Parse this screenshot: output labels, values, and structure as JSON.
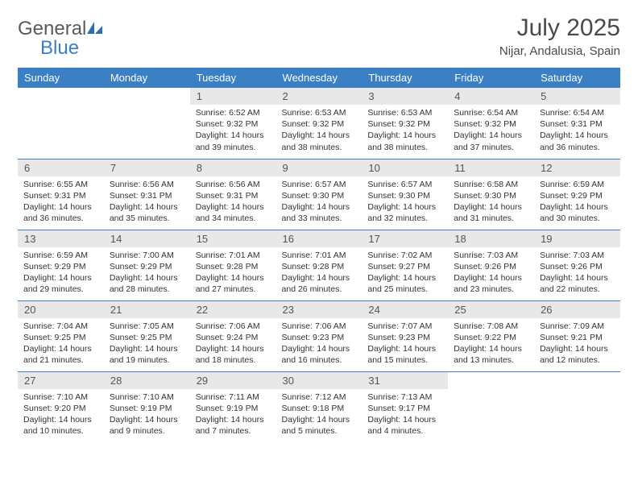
{
  "brand": {
    "name_a": "General",
    "name_b": "Blue"
  },
  "title": "July 2025",
  "location": "Nijar, Andalusia, Spain",
  "colors": {
    "header_bg": "#3b7fc4",
    "header_text": "#ffffff",
    "daynum_bg": "#e8e8e8",
    "row_border": "#3b7fc4",
    "body_text": "#333333",
    "title_text": "#4a4a4a",
    "background": "#ffffff"
  },
  "weekdays": [
    "Sunday",
    "Monday",
    "Tuesday",
    "Wednesday",
    "Thursday",
    "Friday",
    "Saturday"
  ],
  "weeks": [
    [
      null,
      null,
      {
        "n": "1",
        "sunrise": "Sunrise: 6:52 AM",
        "sunset": "Sunset: 9:32 PM",
        "daylight": "Daylight: 14 hours and 39 minutes."
      },
      {
        "n": "2",
        "sunrise": "Sunrise: 6:53 AM",
        "sunset": "Sunset: 9:32 PM",
        "daylight": "Daylight: 14 hours and 38 minutes."
      },
      {
        "n": "3",
        "sunrise": "Sunrise: 6:53 AM",
        "sunset": "Sunset: 9:32 PM",
        "daylight": "Daylight: 14 hours and 38 minutes."
      },
      {
        "n": "4",
        "sunrise": "Sunrise: 6:54 AM",
        "sunset": "Sunset: 9:32 PM",
        "daylight": "Daylight: 14 hours and 37 minutes."
      },
      {
        "n": "5",
        "sunrise": "Sunrise: 6:54 AM",
        "sunset": "Sunset: 9:31 PM",
        "daylight": "Daylight: 14 hours and 36 minutes."
      }
    ],
    [
      {
        "n": "6",
        "sunrise": "Sunrise: 6:55 AM",
        "sunset": "Sunset: 9:31 PM",
        "daylight": "Daylight: 14 hours and 36 minutes."
      },
      {
        "n": "7",
        "sunrise": "Sunrise: 6:56 AM",
        "sunset": "Sunset: 9:31 PM",
        "daylight": "Daylight: 14 hours and 35 minutes."
      },
      {
        "n": "8",
        "sunrise": "Sunrise: 6:56 AM",
        "sunset": "Sunset: 9:31 PM",
        "daylight": "Daylight: 14 hours and 34 minutes."
      },
      {
        "n": "9",
        "sunrise": "Sunrise: 6:57 AM",
        "sunset": "Sunset: 9:30 PM",
        "daylight": "Daylight: 14 hours and 33 minutes."
      },
      {
        "n": "10",
        "sunrise": "Sunrise: 6:57 AM",
        "sunset": "Sunset: 9:30 PM",
        "daylight": "Daylight: 14 hours and 32 minutes."
      },
      {
        "n": "11",
        "sunrise": "Sunrise: 6:58 AM",
        "sunset": "Sunset: 9:30 PM",
        "daylight": "Daylight: 14 hours and 31 minutes."
      },
      {
        "n": "12",
        "sunrise": "Sunrise: 6:59 AM",
        "sunset": "Sunset: 9:29 PM",
        "daylight": "Daylight: 14 hours and 30 minutes."
      }
    ],
    [
      {
        "n": "13",
        "sunrise": "Sunrise: 6:59 AM",
        "sunset": "Sunset: 9:29 PM",
        "daylight": "Daylight: 14 hours and 29 minutes."
      },
      {
        "n": "14",
        "sunrise": "Sunrise: 7:00 AM",
        "sunset": "Sunset: 9:29 PM",
        "daylight": "Daylight: 14 hours and 28 minutes."
      },
      {
        "n": "15",
        "sunrise": "Sunrise: 7:01 AM",
        "sunset": "Sunset: 9:28 PM",
        "daylight": "Daylight: 14 hours and 27 minutes."
      },
      {
        "n": "16",
        "sunrise": "Sunrise: 7:01 AM",
        "sunset": "Sunset: 9:28 PM",
        "daylight": "Daylight: 14 hours and 26 minutes."
      },
      {
        "n": "17",
        "sunrise": "Sunrise: 7:02 AM",
        "sunset": "Sunset: 9:27 PM",
        "daylight": "Daylight: 14 hours and 25 minutes."
      },
      {
        "n": "18",
        "sunrise": "Sunrise: 7:03 AM",
        "sunset": "Sunset: 9:26 PM",
        "daylight": "Daylight: 14 hours and 23 minutes."
      },
      {
        "n": "19",
        "sunrise": "Sunrise: 7:03 AM",
        "sunset": "Sunset: 9:26 PM",
        "daylight": "Daylight: 14 hours and 22 minutes."
      }
    ],
    [
      {
        "n": "20",
        "sunrise": "Sunrise: 7:04 AM",
        "sunset": "Sunset: 9:25 PM",
        "daylight": "Daylight: 14 hours and 21 minutes."
      },
      {
        "n": "21",
        "sunrise": "Sunrise: 7:05 AM",
        "sunset": "Sunset: 9:25 PM",
        "daylight": "Daylight: 14 hours and 19 minutes."
      },
      {
        "n": "22",
        "sunrise": "Sunrise: 7:06 AM",
        "sunset": "Sunset: 9:24 PM",
        "daylight": "Daylight: 14 hours and 18 minutes."
      },
      {
        "n": "23",
        "sunrise": "Sunrise: 7:06 AM",
        "sunset": "Sunset: 9:23 PM",
        "daylight": "Daylight: 14 hours and 16 minutes."
      },
      {
        "n": "24",
        "sunrise": "Sunrise: 7:07 AM",
        "sunset": "Sunset: 9:23 PM",
        "daylight": "Daylight: 14 hours and 15 minutes."
      },
      {
        "n": "25",
        "sunrise": "Sunrise: 7:08 AM",
        "sunset": "Sunset: 9:22 PM",
        "daylight": "Daylight: 14 hours and 13 minutes."
      },
      {
        "n": "26",
        "sunrise": "Sunrise: 7:09 AM",
        "sunset": "Sunset: 9:21 PM",
        "daylight": "Daylight: 14 hours and 12 minutes."
      }
    ],
    [
      {
        "n": "27",
        "sunrise": "Sunrise: 7:10 AM",
        "sunset": "Sunset: 9:20 PM",
        "daylight": "Daylight: 14 hours and 10 minutes."
      },
      {
        "n": "28",
        "sunrise": "Sunrise: 7:10 AM",
        "sunset": "Sunset: 9:19 PM",
        "daylight": "Daylight: 14 hours and 9 minutes."
      },
      {
        "n": "29",
        "sunrise": "Sunrise: 7:11 AM",
        "sunset": "Sunset: 9:19 PM",
        "daylight": "Daylight: 14 hours and 7 minutes."
      },
      {
        "n": "30",
        "sunrise": "Sunrise: 7:12 AM",
        "sunset": "Sunset: 9:18 PM",
        "daylight": "Daylight: 14 hours and 5 minutes."
      },
      {
        "n": "31",
        "sunrise": "Sunrise: 7:13 AM",
        "sunset": "Sunset: 9:17 PM",
        "daylight": "Daylight: 14 hours and 4 minutes."
      },
      null,
      null
    ]
  ]
}
